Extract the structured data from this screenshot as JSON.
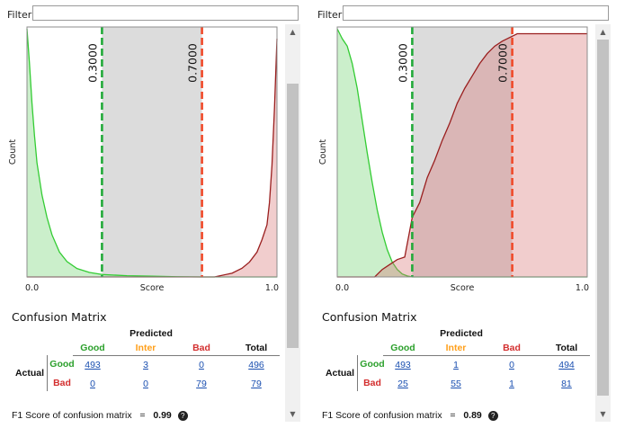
{
  "filter_label": "Filter",
  "filter_value": "",
  "scroll_icons": {
    "up": "▲",
    "down": "▼"
  },
  "colors": {
    "good": "#2ca02c",
    "inter": "#ff9f1a",
    "bad": "#d32f2f",
    "link": "#1a4fb0"
  },
  "panels": [
    {
      "chart_data": {
        "type": "area",
        "xlabel": "Score",
        "ylabel": "Count",
        "xlim": [
          0.0,
          1.0
        ],
        "x_tick_labels": [
          "0.0",
          "1.0"
        ],
        "thresholds": [
          {
            "value": 0.3,
            "label": "0.3000",
            "color": "#22aa3a"
          },
          {
            "value": 0.7,
            "label": "0.7000",
            "color": "#f04a2a"
          }
        ],
        "shaded_range": [
          0.3,
          0.7
        ],
        "series": [
          {
            "name": "Good",
            "kind": "density",
            "x": [
              0.0,
              0.01,
              0.02,
              0.03,
              0.04,
              0.06,
              0.08,
              0.1,
              0.13,
              0.16,
              0.2,
              0.25,
              0.3,
              0.4,
              0.5,
              0.6,
              0.7,
              0.85,
              1.0
            ],
            "y": [
              1.0,
              0.86,
              0.7,
              0.57,
              0.46,
              0.33,
              0.24,
              0.17,
              0.1,
              0.062,
              0.034,
              0.018,
              0.01,
              0.005,
              0.003,
              0.001,
              0.0,
              0.0,
              0.0
            ]
          },
          {
            "name": "Bad",
            "kind": "density",
            "x": [
              0.0,
              0.5,
              0.75,
              0.82,
              0.86,
              0.89,
              0.92,
              0.94,
              0.96,
              0.97,
              0.98,
              0.99,
              1.0
            ],
            "y": [
              0.0,
              0.0,
              0.0,
              0.015,
              0.035,
              0.06,
              0.1,
              0.15,
              0.21,
              0.3,
              0.45,
              0.68,
              0.96
            ]
          }
        ]
      },
      "confusion_matrix": {
        "title": "Confusion Matrix",
        "predicted_label": "Predicted",
        "actual_label": "Actual",
        "columns": [
          "Good",
          "Inter",
          "Bad",
          "Total"
        ],
        "rows": [
          {
            "label": "Good",
            "values": [
              "493",
              "3",
              "0",
              "496"
            ]
          },
          {
            "label": "Bad",
            "values": [
              "0",
              "0",
              "79",
              "79"
            ]
          }
        ],
        "f1_text": "F1 Score of confusion matrix",
        "f1_eq": "=",
        "f1_value": "0.99"
      },
      "scroll": {
        "thumb_top": 0.12,
        "thumb_height": 0.72
      }
    },
    {
      "chart_data": {
        "type": "area",
        "xlabel": "Score",
        "ylabel": "Count",
        "xlim": [
          0.0,
          1.0
        ],
        "x_tick_labels": [
          "0.0",
          "1.0"
        ],
        "thresholds": [
          {
            "value": 0.3,
            "label": "0.3000",
            "color": "#22aa3a"
          },
          {
            "value": 0.7,
            "label": "0.7000",
            "color": "#f04a2a"
          }
        ],
        "shaded_range": [
          0.3,
          0.7
        ],
        "series": [
          {
            "name": "Good",
            "kind": "density",
            "x": [
              0.0,
              0.01,
              0.02,
              0.04,
              0.06,
              0.08,
              0.1,
              0.12,
              0.14,
              0.16,
              0.18,
              0.2,
              0.22,
              0.24,
              0.26,
              0.28,
              0.3,
              0.35,
              1.0
            ],
            "y": [
              1.0,
              0.98,
              0.96,
              0.93,
              0.86,
              0.76,
              0.63,
              0.5,
              0.38,
              0.27,
              0.18,
              0.11,
              0.06,
              0.03,
              0.012,
              0.004,
              0.0,
              0.0,
              0.0
            ]
          },
          {
            "name": "Bad",
            "kind": "cumulative",
            "x": [
              0.0,
              0.15,
              0.18,
              0.21,
              0.24,
              0.27,
              0.3,
              0.33,
              0.36,
              0.39,
              0.42,
              0.45,
              0.48,
              0.51,
              0.54,
              0.57,
              0.6,
              0.63,
              0.66,
              0.7,
              0.72,
              1.0
            ],
            "y": [
              0.0,
              0.0,
              0.03,
              0.05,
              0.07,
              0.08,
              0.24,
              0.3,
              0.4,
              0.47,
              0.55,
              0.62,
              0.7,
              0.76,
              0.81,
              0.86,
              0.9,
              0.93,
              0.95,
              0.97,
              0.98,
              0.98
            ]
          }
        ]
      },
      "confusion_matrix": {
        "title": "Confusion Matrix",
        "predicted_label": "Predicted",
        "actual_label": "Actual",
        "columns": [
          "Good",
          "Inter",
          "Bad",
          "Total"
        ],
        "rows": [
          {
            "label": "Good",
            "values": [
              "493",
              "1",
              "0",
              "494"
            ]
          },
          {
            "label": "Bad",
            "values": [
              "25",
              "55",
              "1",
              "81"
            ]
          }
        ],
        "f1_text": "F1 Score of confusion matrix",
        "f1_eq": "=",
        "f1_value": "0.89"
      },
      "scroll": {
        "thumb_top": 0.0,
        "thumb_height": 0.97
      }
    }
  ]
}
